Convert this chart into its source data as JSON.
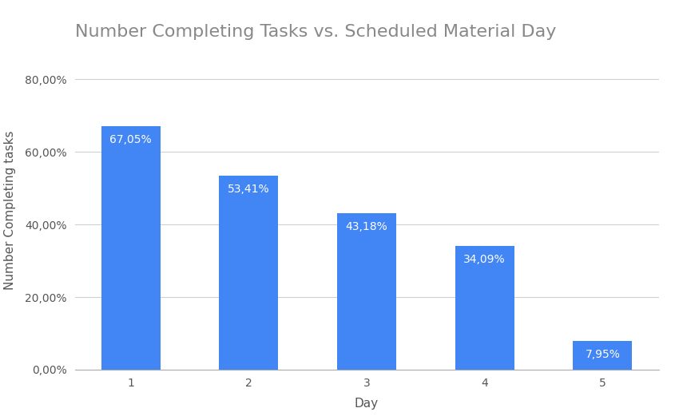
{
  "title": "Number Completing Tasks vs. Scheduled Material Day",
  "xlabel": "Day",
  "ylabel": "Number Completing tasks",
  "categories": [
    1,
    2,
    3,
    4,
    5
  ],
  "values": [
    0.6705,
    0.5341,
    0.4318,
    0.3409,
    0.0795
  ],
  "labels": [
    "67,05%",
    "53,41%",
    "43,18%",
    "34,09%",
    "7,95%"
  ],
  "bar_color": "#4285F4",
  "label_color": "#ffffff",
  "background_color": "#ffffff",
  "title_color": "#888888",
  "axis_label_color": "#555555",
  "tick_color": "#555555",
  "grid_color": "#d0d0d0",
  "ylim": [
    0,
    0.88
  ],
  "yticks": [
    0.0,
    0.2,
    0.4,
    0.6,
    0.8
  ],
  "ytick_labels": [
    "0,00%",
    "20,00%",
    "40,00%",
    "60,00%",
    "80,00%"
  ],
  "title_fontsize": 16,
  "axis_label_fontsize": 11,
  "tick_fontsize": 10,
  "bar_label_fontsize": 10,
  "bar_width": 0.5
}
